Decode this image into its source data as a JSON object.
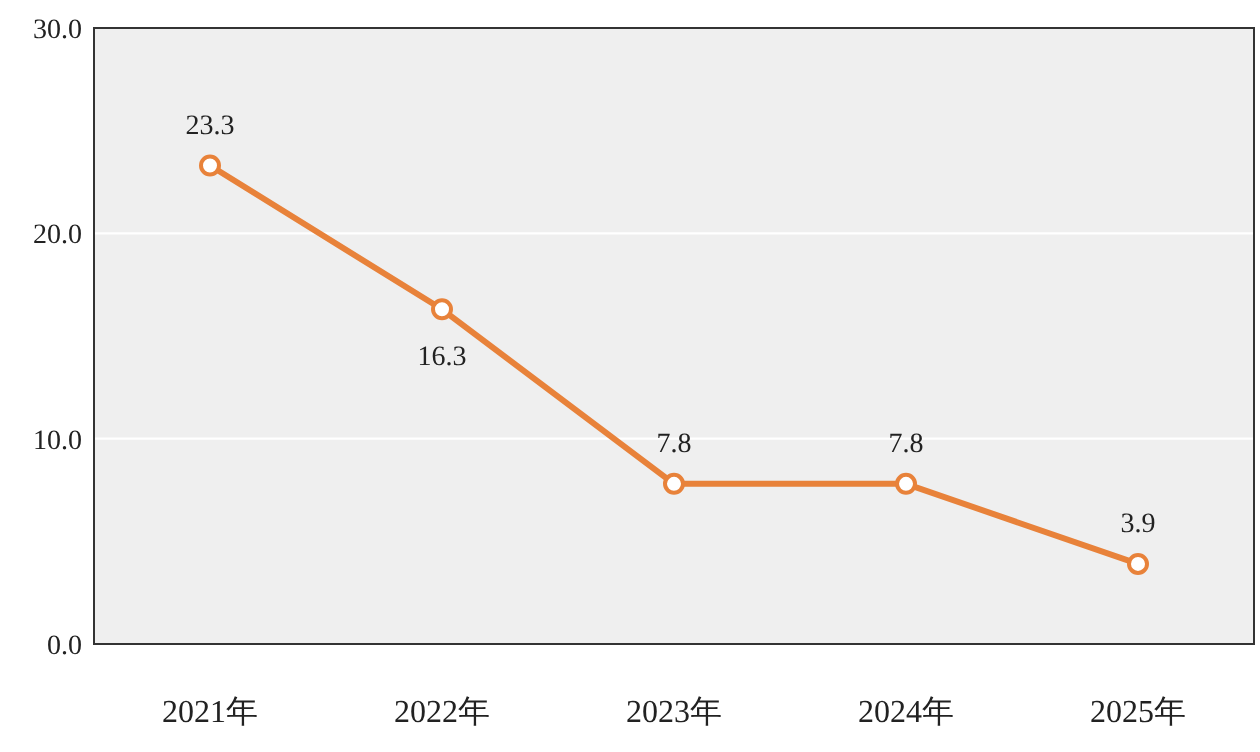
{
  "chart_data": {
    "type": "line",
    "categories": [
      "2021年",
      "2022年",
      "2023年",
      "2024年",
      "2025年"
    ],
    "series": [
      {
        "color": "#e8823a",
        "values": [
          23.3,
          16.3,
          7.8,
          7.8,
          3.9
        ]
      }
    ],
    "ylim": [
      0,
      30
    ],
    "yticks": [
      {
        "value": 0,
        "label": "0.0"
      },
      {
        "value": 10,
        "label": "10.0"
      },
      {
        "value": 20,
        "label": "20.0"
      },
      {
        "value": 30,
        "label": "30.0"
      }
    ],
    "grid": "y",
    "marker": "circle",
    "data_labels": true
  }
}
